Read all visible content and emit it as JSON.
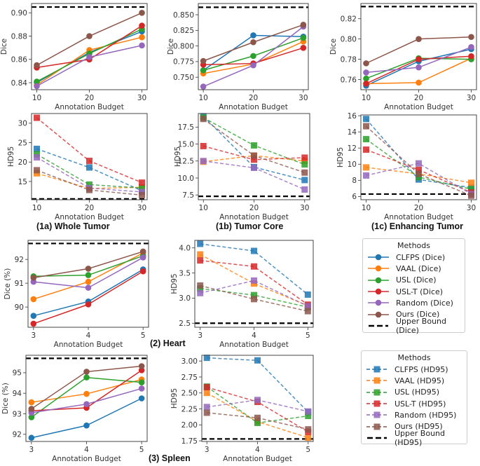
{
  "colors": {
    "CLFPS": "#1f77b4",
    "VAAL": "#ff7f0e",
    "USL": "#2ca02c",
    "USL-T": "#d62728",
    "Random": "#9467bd",
    "Ours": "#8c564b",
    "Upper Bound": "#000000"
  },
  "panel_titles": {
    "whole_tumor": "(1a) Whole Tumor",
    "tumor_core": "(1b) Tumor Core",
    "enhancing_tumor": "(1c) Enhancing Tumor",
    "heart": "(2) Heart",
    "spleen": "(3) Spleen"
  },
  "legends": {
    "dice": {
      "title": "Methods",
      "items": [
        "CLFPS (Dice)",
        "VAAL (Dice)",
        "USL (Dice)",
        "USL-T (Dice)",
        "Random (Dice)",
        "Ours (Dice)",
        "Upper Bound (Dice)"
      ]
    },
    "hd95": {
      "title": "Methods",
      "items": [
        "CLFPS (HD95)",
        "VAAL (HD95)",
        "USL (HD95)",
        "USL-T (HD95)",
        "Random (HD95)",
        "Ours (HD95)",
        "Upper Bound (HD95)"
      ]
    }
  },
  "chart_data": [
    {
      "id": "wt_dice",
      "type": "line",
      "xlabel": "Annotation Budget",
      "ylabel": "Dice",
      "x": [
        10,
        20,
        30
      ],
      "xlim": [
        9,
        31
      ],
      "ylim": [
        0.834,
        0.908
      ],
      "yticks": [
        "0.84",
        "0.86",
        "0.88",
        "0.90"
      ],
      "marker": "circle",
      "upper_bound": 0.905,
      "series": [
        {
          "name": "CLFPS",
          "values": [
            0.84,
            0.866,
            0.884
          ]
        },
        {
          "name": "VAAL",
          "values": [
            0.838,
            0.868,
            0.879
          ]
        },
        {
          "name": "USL",
          "values": [
            0.841,
            0.865,
            0.886
          ]
        },
        {
          "name": "USL-T",
          "values": [
            0.853,
            0.86,
            0.889
          ]
        },
        {
          "name": "Random",
          "values": [
            0.837,
            0.862,
            0.872
          ]
        },
        {
          "name": "Ours",
          "values": [
            0.855,
            0.88,
            0.9
          ]
        }
      ]
    },
    {
      "id": "tc_dice",
      "type": "line",
      "xlabel": "Annotation Budget",
      "ylabel": "Dice",
      "x": [
        10,
        20,
        30
      ],
      "xlim": [
        9,
        31
      ],
      "ylim": [
        0.73,
        0.868
      ],
      "yticks": [
        "0.750",
        "0.775",
        "0.800",
        "0.825",
        "0.850"
      ],
      "marker": "circle",
      "upper_bound": 0.862,
      "series": [
        {
          "name": "CLFPS",
          "values": [
            0.761,
            0.817,
            0.815
          ]
        },
        {
          "name": "VAAL",
          "values": [
            0.756,
            0.771,
            0.807
          ]
        },
        {
          "name": "USL",
          "values": [
            0.761,
            0.784,
            0.813
          ]
        },
        {
          "name": "USL-T",
          "values": [
            0.77,
            0.772,
            0.797
          ]
        },
        {
          "name": "Random",
          "values": [
            0.735,
            0.769,
            0.831
          ]
        },
        {
          "name": "Ours",
          "values": [
            0.776,
            0.806,
            0.834
          ]
        }
      ]
    },
    {
      "id": "et_dice",
      "type": "line",
      "xlabel": "Annotation Budget",
      "ylabel": "Dice",
      "x": [
        10,
        20,
        30
      ],
      "xlim": [
        9,
        31
      ],
      "ylim": [
        0.75,
        0.835
      ],
      "yticks": [
        "0.76",
        "0.78",
        "0.80",
        "0.82"
      ],
      "marker": "circle",
      "upper_bound": 0.832,
      "series": [
        {
          "name": "CLFPS",
          "values": [
            0.754,
            0.778,
            0.79
          ]
        },
        {
          "name": "VAAL",
          "values": [
            0.756,
            0.757,
            0.781
          ]
        },
        {
          "name": "USL",
          "values": [
            0.761,
            0.781,
            0.78
          ]
        },
        {
          "name": "USL-T",
          "values": [
            0.756,
            0.78,
            0.783
          ]
        },
        {
          "name": "Random",
          "values": [
            0.767,
            0.772,
            0.792
          ]
        },
        {
          "name": "Ours",
          "values": [
            0.776,
            0.8,
            0.802
          ]
        }
      ]
    },
    {
      "id": "wt_hd95",
      "type": "line",
      "xlabel": "Annotation Budget",
      "ylabel": "HD95",
      "x": [
        10,
        20,
        30
      ],
      "xlim": [
        9,
        31
      ],
      "ylim": [
        10.3,
        32.5
      ],
      "yticks": [
        "15",
        "20",
        "25",
        "30"
      ],
      "marker": "square",
      "upper_bound": 10.5,
      "series": [
        {
          "name": "CLFPS",
          "values": [
            23.4,
            18.6,
            12.6
          ]
        },
        {
          "name": "VAAL",
          "values": [
            17.1,
            13.2,
            13.5
          ]
        },
        {
          "name": "USL",
          "values": [
            22.0,
            14.2,
            13.3
          ]
        },
        {
          "name": "USL-T",
          "values": [
            31.4,
            20.3,
            14.7
          ]
        },
        {
          "name": "Random",
          "values": [
            21.2,
            13.3,
            12.3
          ]
        },
        {
          "name": "Ours",
          "values": [
            17.9,
            12.8,
            11.5
          ]
        }
      ]
    },
    {
      "id": "tc_hd95",
      "type": "line",
      "xlabel": "Annotation Budget",
      "ylabel": "HD95",
      "x": [
        10,
        20,
        30
      ],
      "xlim": [
        9,
        31
      ],
      "ylim": [
        6.8,
        19.5
      ],
      "yticks": [
        "7.5",
        "10.0",
        "12.5",
        "15.0",
        "17.5"
      ],
      "marker": "square",
      "upper_bound": 7.3,
      "series": [
        {
          "name": "CLFPS",
          "values": [
            19.1,
            11.6,
            9.7
          ]
        },
        {
          "name": "VAAL",
          "values": [
            12.4,
            13.3,
            12.5
          ]
        },
        {
          "name": "USL",
          "values": [
            18.9,
            14.8,
            12.0
          ]
        },
        {
          "name": "USL-T",
          "values": [
            14.7,
            12.7,
            13.0
          ]
        },
        {
          "name": "Random",
          "values": [
            12.5,
            11.5,
            8.3
          ]
        },
        {
          "name": "Ours",
          "values": [
            18.7,
            13.3,
            10.8
          ]
        }
      ]
    },
    {
      "id": "et_hd95",
      "type": "line",
      "xlabel": "Annotation Budget",
      "ylabel": "HD95",
      "x": [
        10,
        20,
        30
      ],
      "xlim": [
        9,
        31
      ],
      "ylim": [
        5.6,
        16.1
      ],
      "yticks": [
        "6",
        "8",
        "10",
        "12",
        "14",
        "16"
      ],
      "marker": "square",
      "upper_bound": 6.3,
      "series": [
        {
          "name": "CLFPS",
          "values": [
            15.6,
            8.1,
            7.1
          ]
        },
        {
          "name": "VAAL",
          "values": [
            9.6,
            8.8,
            7.7
          ]
        },
        {
          "name": "USL",
          "values": [
            13.1,
            8.4,
            6.9
          ]
        },
        {
          "name": "USL-T",
          "values": [
            11.8,
            9.3,
            6.5
          ]
        },
        {
          "name": "Random",
          "values": [
            8.6,
            10.1,
            6.3
          ]
        },
        {
          "name": "Ours",
          "values": [
            14.7,
            8.8,
            6.1
          ]
        }
      ]
    },
    {
      "id": "heart_dice",
      "type": "line",
      "xlabel": "Annotation Budget",
      "ylabel": "Dice (%)",
      "x": [
        3,
        4,
        5
      ],
      "xlim": [
        2.9,
        5.1
      ],
      "ylim": [
        89.15,
        92.8
      ],
      "yticks": [
        "90",
        "91",
        "92"
      ],
      "marker": "circle",
      "upper_bound": 92.67,
      "series": [
        {
          "name": "CLFPS",
          "values": [
            89.63,
            90.23,
            91.58
          ]
        },
        {
          "name": "VAAL",
          "values": [
            90.33,
            91.06,
            92.27
          ]
        },
        {
          "name": "USL",
          "values": [
            91.29,
            91.34,
            92.15
          ]
        },
        {
          "name": "USL-T",
          "values": [
            89.3,
            90.11,
            91.5
          ]
        },
        {
          "name": "Random",
          "values": [
            91.06,
            90.81,
            92.08
          ]
        },
        {
          "name": "Ours",
          "values": [
            91.23,
            91.61,
            92.33
          ]
        }
      ]
    },
    {
      "id": "heart_hd95",
      "type": "line",
      "xlabel": "Annotation Budget",
      "ylabel": "HD95",
      "x": [
        3,
        4,
        5
      ],
      "xlim": [
        2.9,
        5.1
      ],
      "ylim": [
        2.42,
        4.15
      ],
      "yticks": [
        "2.5",
        "3.0",
        "3.5",
        "4.0"
      ],
      "marker": "square",
      "upper_bound": 2.5,
      "series": [
        {
          "name": "CLFPS",
          "values": [
            4.08,
            3.94,
            3.07
          ]
        },
        {
          "name": "VAAL",
          "values": [
            3.87,
            3.29,
            2.85
          ]
        },
        {
          "name": "USL",
          "values": [
            3.19,
            3.06,
            2.82
          ]
        },
        {
          "name": "USL-T",
          "values": [
            3.75,
            3.63,
            2.87
          ]
        },
        {
          "name": "Random",
          "values": [
            3.1,
            3.35,
            2.84
          ]
        },
        {
          "name": "Ours",
          "values": [
            3.25,
            2.98,
            2.74
          ]
        }
      ]
    },
    {
      "id": "spleen_dice",
      "type": "line",
      "xlabel": "Annotation Budget",
      "ylabel": "Dice (%)",
      "x": [
        3,
        4,
        5
      ],
      "xlim": [
        2.9,
        5.1
      ],
      "ylim": [
        91.65,
        95.85
      ],
      "yticks": [
        "92",
        "93",
        "94",
        "95"
      ],
      "marker": "circle",
      "upper_bound": 95.7,
      "series": [
        {
          "name": "CLFPS",
          "values": [
            91.83,
            92.43,
            93.75
          ]
        },
        {
          "name": "VAAL",
          "values": [
            93.56,
            93.97,
            94.67
          ]
        },
        {
          "name": "USL",
          "values": [
            92.83,
            94.77,
            94.53
          ]
        },
        {
          "name": "USL-T",
          "values": [
            93.15,
            93.29,
            95.12
          ]
        },
        {
          "name": "Random",
          "values": [
            93.05,
            93.47,
            94.23
          ]
        },
        {
          "name": "Ours",
          "values": [
            93.24,
            95.05,
            95.32
          ]
        }
      ]
    },
    {
      "id": "spleen_hd95",
      "type": "line",
      "xlabel": "Annotation Budget",
      "ylabel": "HD95",
      "x": [
        3,
        4,
        5
      ],
      "xlim": [
        2.9,
        5.1
      ],
      "ylim": [
        1.74,
        3.09
      ],
      "yticks": [
        "1.75",
        "2.00",
        "2.25",
        "2.50",
        "2.75",
        "3.00"
      ],
      "marker": "square",
      "upper_bound": 1.78,
      "series": [
        {
          "name": "CLFPS",
          "values": [
            3.05,
            3.01,
            2.2
          ]
        },
        {
          "name": "VAAL",
          "values": [
            2.5,
            2.05,
            1.8
          ]
        },
        {
          "name": "USL",
          "values": [
            2.6,
            2.03,
            2.14
          ]
        },
        {
          "name": "USL-T",
          "values": [
            2.59,
            2.36,
            1.89
          ]
        },
        {
          "name": "Random",
          "values": [
            2.28,
            2.39,
            2.21
          ]
        },
        {
          "name": "Ours",
          "values": [
            2.19,
            2.11,
            1.93
          ]
        }
      ]
    }
  ]
}
